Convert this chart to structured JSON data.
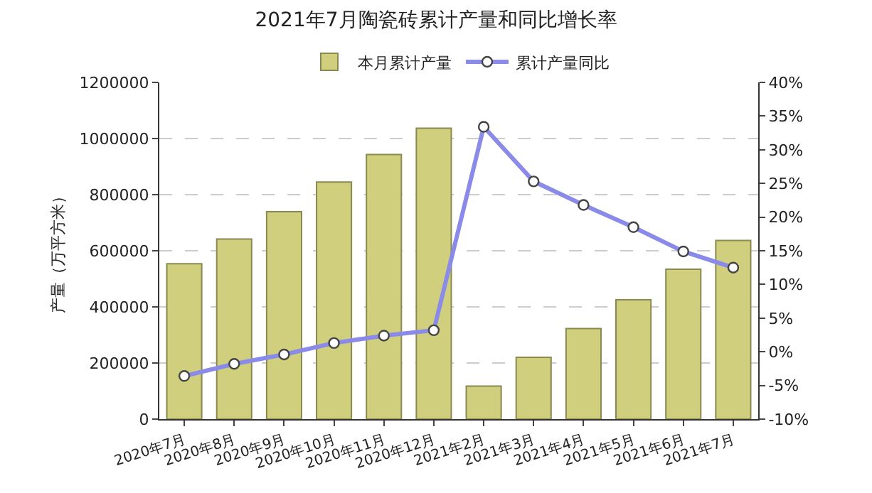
{
  "chart_data": {
    "type": "bar",
    "title": "2021年7月陶瓷砖累计产量和同比增长率",
    "ylabel": "产量（万平方米）",
    "categories": [
      "2020年7月",
      "2020年8月",
      "2020年9月",
      "2020年10月",
      "2020年11月",
      "2020年12月",
      "2021年2月",
      "2021年3月",
      "2021年4月",
      "2021年5月",
      "2021年6月",
      "2021年7月"
    ],
    "series": [
      {
        "name": "本月累计产量",
        "color": "#cfcf7e",
        "values": [
          554000,
          642000,
          739000,
          845000,
          943000,
          1037000,
          118000,
          220000,
          323000,
          425000,
          534000,
          637000
        ]
      },
      {
        "name": "累计产量同比",
        "type": "line",
        "axis": "y2",
        "color": "#8a8ae8",
        "marker": "circle",
        "values": [
          -3.6,
          -1.8,
          -0.4,
          1.3,
          2.4,
          3.2,
          33.4,
          25.3,
          21.8,
          18.5,
          14.9,
          12.5
        ]
      }
    ],
    "ylim": [
      0,
      1200000
    ],
    "yticks": [
      0,
      200000,
      400000,
      600000,
      800000,
      1000000,
      1200000
    ],
    "y2lim": [
      -10,
      40
    ],
    "y2ticks": [
      {
        "value": -10,
        "label": "-10%"
      },
      {
        "value": -5,
        "label": "-5%"
      },
      {
        "value": 0,
        "label": "0%"
      },
      {
        "value": 5,
        "label": "5%"
      },
      {
        "value": 10,
        "label": "10%"
      },
      {
        "value": 15,
        "label": "15%"
      },
      {
        "value": 20,
        "label": "20%"
      },
      {
        "value": 25,
        "label": "25%"
      },
      {
        "value": 30,
        "label": "30%"
      },
      {
        "value": 35,
        "label": "35%"
      },
      {
        "value": 40,
        "label": "40%"
      }
    ],
    "grid": "y",
    "legend": "top"
  }
}
